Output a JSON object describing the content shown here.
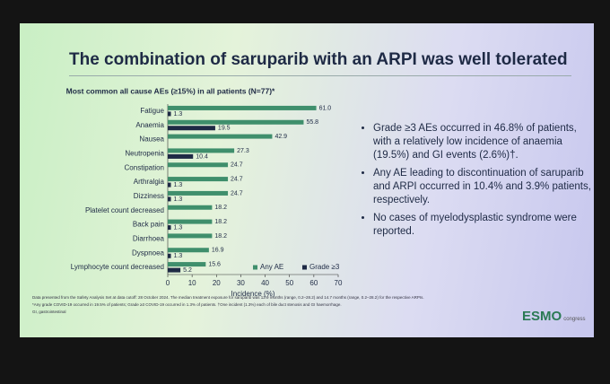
{
  "slide": {
    "title": "The combination of saruparib with an ARPI was well tolerated",
    "bullets": [
      "Grade ≥3 AEs occurred in 46.8% of patients, with a relatively low incidence of anaemia (19.5%) and GI events (2.6%)†.",
      "Any AE leading to discontinuation of saruparib and ARPI occurred in 10.4% and 3.9% patients, respectively.",
      "No cases of myelodysplastic syndrome were reported."
    ],
    "footnotes": [
      "Data presented from the Safety Analysis Set at data cutoff: 28 October 2024. The median treatment exposure for saruparib was 12.9 months (range, 0.2–28.2) and 14.7 months (range, 0.2–28.2) for the respective ARPIs.",
      "*Any grade COVID-19 occurred in 19.5% of patients; Grade ≥3 COVID-19 occurred in 1.3% of patients. †One incident (1.3%) each of bile duct stenosis and GI haemorrhage.",
      "GI, gastrointestinal"
    ],
    "logo": "ESMO",
    "logo_sub": "congress"
  },
  "chart_data": {
    "type": "bar",
    "orientation": "horizontal",
    "title": "Most common all cause AEs (≥15%) in all patients (N=77)*",
    "x_label": "Incidence (%)",
    "categories": [
      "Fatigue",
      "Anaemia",
      "Nausea",
      "Neutropenia",
      "Constipation",
      "Arthralgia",
      "Dizziness",
      "Platelet count decreased",
      "Back pain",
      "Diarrhoea",
      "Dyspnoea",
      "Lymphocyte count decreased"
    ],
    "series": [
      {
        "name": "Any AE",
        "color": "#3f8f6c",
        "values": [
          61.0,
          55.8,
          42.9,
          27.3,
          24.7,
          24.7,
          24.7,
          18.2,
          18.2,
          18.2,
          16.9,
          15.6
        ],
        "value_labels": [
          "61.0",
          "55.8",
          "42.9",
          "27.3",
          "24.7",
          "24.7",
          "24.7",
          "18.2",
          "18.2",
          "18.2",
          "16.9",
          "15.6"
        ]
      },
      {
        "name": "Grade ≥3",
        "color": "#1e2a45",
        "values": [
          1.3,
          19.5,
          null,
          10.4,
          null,
          1.3,
          1.3,
          null,
          1.3,
          null,
          1.3,
          5.2
        ],
        "value_labels": [
          "1.3",
          "19.5",
          null,
          "10.4",
          null,
          "1.3",
          "1.3",
          null,
          "1.3",
          null,
          "1.3",
          "5.2"
        ]
      }
    ],
    "xlim": [
      0,
      70
    ],
    "xticks": [
      0,
      10,
      20,
      30,
      40,
      50,
      60,
      70
    ],
    "grid": false,
    "legend": "lower right"
  }
}
